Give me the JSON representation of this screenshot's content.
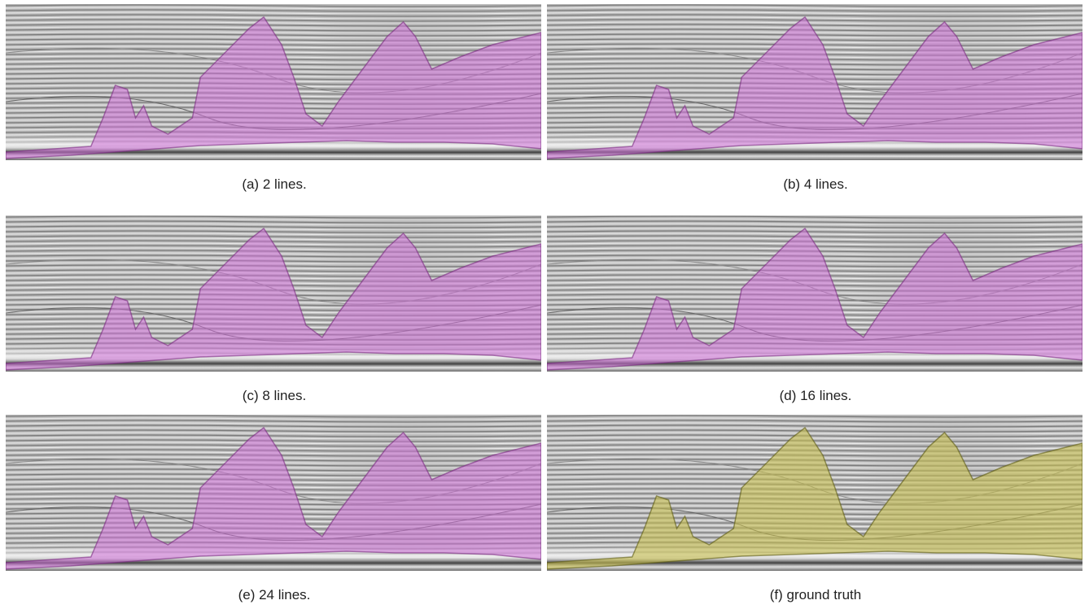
{
  "panels": [
    {
      "caption": "(a) 2 lines."
    },
    {
      "caption": "(b) 4 lines."
    },
    {
      "caption": "(c) 8 lines."
    },
    {
      "caption": "(d) 16 lines."
    },
    {
      "caption": "(e) 24 lines."
    },
    {
      "caption": "(f) ground truth"
    }
  ]
}
